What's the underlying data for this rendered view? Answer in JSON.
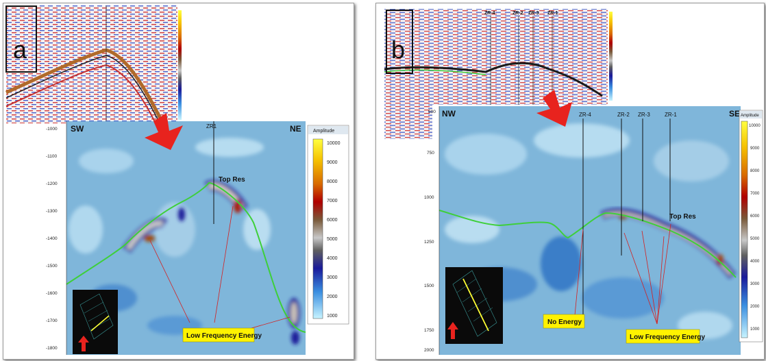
{
  "panel_a": {
    "letter": "a",
    "orient_left": "SW",
    "orient_right": "NE",
    "wells": [
      "ZR1"
    ],
    "top_label": "Top Res",
    "energy_label": "Low Frequency Energy",
    "colorbar_title": "Amplitude",
    "colorbar_ticks": [
      "10000",
      "9000",
      "8000",
      "7000",
      "6000",
      "5000",
      "4000",
      "3000",
      "2000",
      "1000"
    ],
    "depth_ticks": [
      "-1000",
      "-1100",
      "-1200",
      "-1300",
      "-1400",
      "-1500",
      "-1600",
      "-1700",
      "-1800"
    ]
  },
  "panel_b": {
    "letter": "b",
    "orient_left": "NW",
    "orient_right": "SE",
    "wells": [
      "ZR-4",
      "ZR-2",
      "ZR-3",
      "ZR-1"
    ],
    "top_label": "Top Res",
    "no_energy_label": "No Energy",
    "energy_label": "Low Frequency Energy",
    "colorbar_title": "Amplitude",
    "colorbar_ticks": [
      "10000",
      "9000",
      "8000",
      "7000",
      "6000",
      "5000",
      "4000",
      "3000",
      "2000",
      "1000"
    ],
    "depth_ticks": [
      "750",
      "1000",
      "1250",
      "1500",
      "1750",
      "2000"
    ],
    "top_depth_tick": "500"
  },
  "colors": {
    "arrow": "#e8231e",
    "horizon": "#3ecf3a",
    "background_blue": "#7fb6da",
    "callout": "#fff200",
    "base_map_line": "#ffff33"
  }
}
